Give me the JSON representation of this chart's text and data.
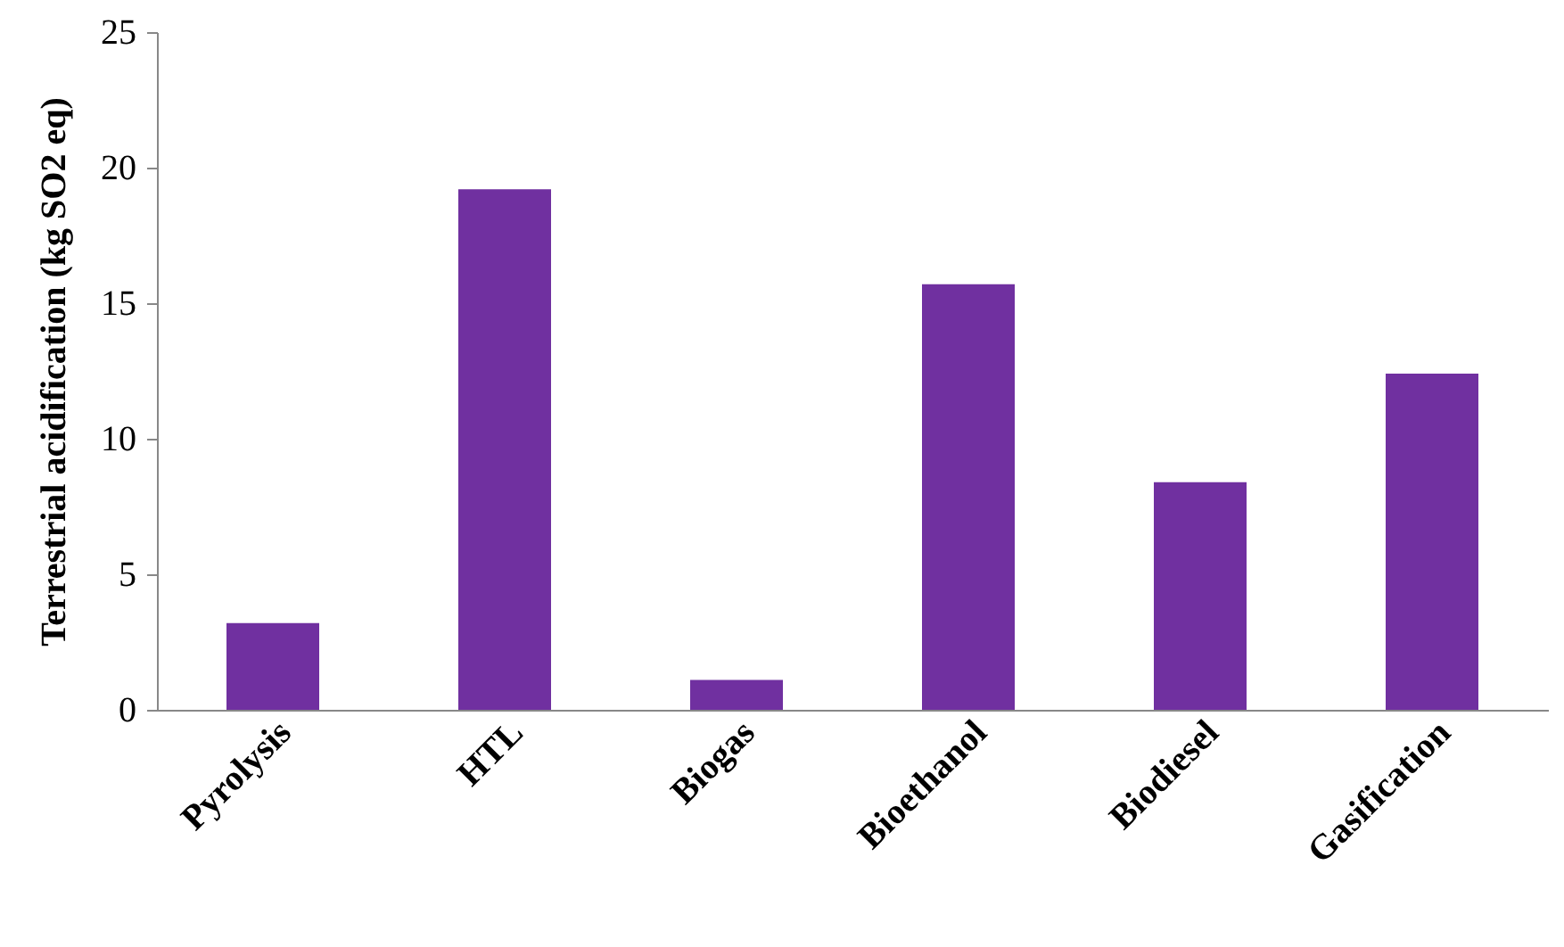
{
  "chart_data": {
    "type": "bar",
    "ylabel": "Terrestrial acidification (kg SO2 eq)",
    "categories": [
      "Pyrolysis",
      "HTL",
      "Biogas",
      "Bioethanol",
      "Biodiesel",
      "Gasification"
    ],
    "values": [
      3.2,
      19.2,
      1.1,
      15.7,
      8.4,
      12.4
    ],
    "color": "#7030a0",
    "ylim": [
      0,
      25
    ],
    "yticks": [
      0,
      5,
      10,
      15,
      20,
      25
    ],
    "grid": false
  }
}
